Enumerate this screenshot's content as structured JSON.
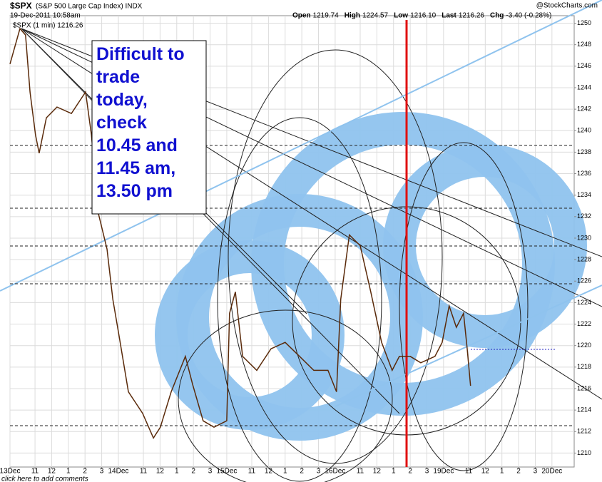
{
  "chart_data": {
    "type": "line",
    "title": "$SPX",
    "subtitle": "(S&P 500 Large Cap Index) INDX",
    "timestamp": "19-Dec-2011 10:58am",
    "stats": [
      {
        "label": "Open",
        "value": "1219.74"
      },
      {
        "label": "High",
        "value": "1224.57"
      },
      {
        "label": "Low",
        "value": "1216.10"
      },
      {
        "label": "Last",
        "value": "1216.26"
      },
      {
        "label": "Chg",
        "value": "-3.40 (-0.28%)"
      }
    ],
    "source": "@StockCharts.com",
    "annotation": [
      "Difficult to",
      "trade",
      "today,",
      "check",
      "10.45 and",
      "11.45 am,",
      "13.50 pm"
    ],
    "footer": "click here to add comments",
    "x": [
      0,
      36,
      56,
      72,
      92,
      105,
      131,
      169,
      221,
      272,
      293,
      318,
      349,
      370,
      392,
      426,
      477,
      516,
      541,
      580,
      631,
      657,
      695,
      734,
      780,
      790,
      811,
      837,
      888,
      939,
      990,
      1042,
      1093,
      1144,
      1175,
      1190,
      1221,
      1260,
      1298,
      1337,
      1375,
      1401,
      1440,
      1478,
      1529,
      1555,
      1580,
      1606,
      1632,
      1645,
      1657
    ],
    "series": [
      {
        "name": "$SPX (1 min) 1216.26",
        "color": "#5a2a0a",
        "values": [
          1246.2,
          1249.5,
          1248.9,
          1243.6,
          1239.6,
          1237.9,
          1241.2,
          1242.2,
          1241.6,
          1243.6,
          1239.6,
          1232.3,
          1229.0,
          1224.3,
          1221.0,
          1215.7,
          1213.7,
          1211.4,
          1212.4,
          1215.7,
          1219.0,
          1216.4,
          1213.0,
          1212.4,
          1213.0,
          1223.0,
          1225.0,
          1219.0,
          1217.7,
          1219.7,
          1220.3,
          1219.0,
          1217.7,
          1217.7,
          1215.7,
          1224.3,
          1230.3,
          1229.3,
          1225.0,
          1220.3,
          1217.7,
          1219.0,
          1219.0,
          1218.4,
          1219.0,
          1220.3,
          1223.7,
          1221.7,
          1223.0,
          1219.7,
          1216.26
        ]
      }
    ],
    "xlim": [
      0,
      2030
    ],
    "xticks": [
      {
        "value": 0,
        "label": "13Dec"
      },
      {
        "value": 90,
        "label": "11"
      },
      {
        "value": 150,
        "label": "12"
      },
      {
        "value": 210,
        "label": "1"
      },
      {
        "value": 270,
        "label": "2"
      },
      {
        "value": 330,
        "label": "3"
      },
      {
        "value": 390,
        "label": "14Dec"
      },
      {
        "value": 480,
        "label": "11"
      },
      {
        "value": 540,
        "label": "12"
      },
      {
        "value": 600,
        "label": "1"
      },
      {
        "value": 660,
        "label": "2"
      },
      {
        "value": 720,
        "label": "3"
      },
      {
        "value": 780,
        "label": "15Dec"
      },
      {
        "value": 870,
        "label": "11"
      },
      {
        "value": 930,
        "label": "12"
      },
      {
        "value": 990,
        "label": "1"
      },
      {
        "value": 1050,
        "label": "2"
      },
      {
        "value": 1110,
        "label": "3"
      },
      {
        "value": 1170,
        "label": "16Dec"
      },
      {
        "value": 1260,
        "label": "11"
      },
      {
        "value": 1320,
        "label": "12"
      },
      {
        "value": 1380,
        "label": "1"
      },
      {
        "value": 1440,
        "label": "2"
      },
      {
        "value": 1500,
        "label": "3"
      },
      {
        "value": 1560,
        "label": "19Dec"
      },
      {
        "value": 1650,
        "label": "11"
      },
      {
        "value": 1710,
        "label": "12"
      },
      {
        "value": 1770,
        "label": "1"
      },
      {
        "value": 1830,
        "label": "2"
      },
      {
        "value": 1890,
        "label": "3"
      },
      {
        "value": 1950,
        "label": "20Dec"
      }
    ],
    "ylim": [
      1208.7,
      1250.7
    ],
    "yticks": [
      1210,
      1212,
      1214,
      1216,
      1218,
      1220,
      1222,
      1224,
      1226,
      1228,
      1230,
      1232,
      1234,
      1236,
      1238,
      1240,
      1242,
      1244,
      1246,
      1248,
      1250
    ],
    "grid": true
  }
}
